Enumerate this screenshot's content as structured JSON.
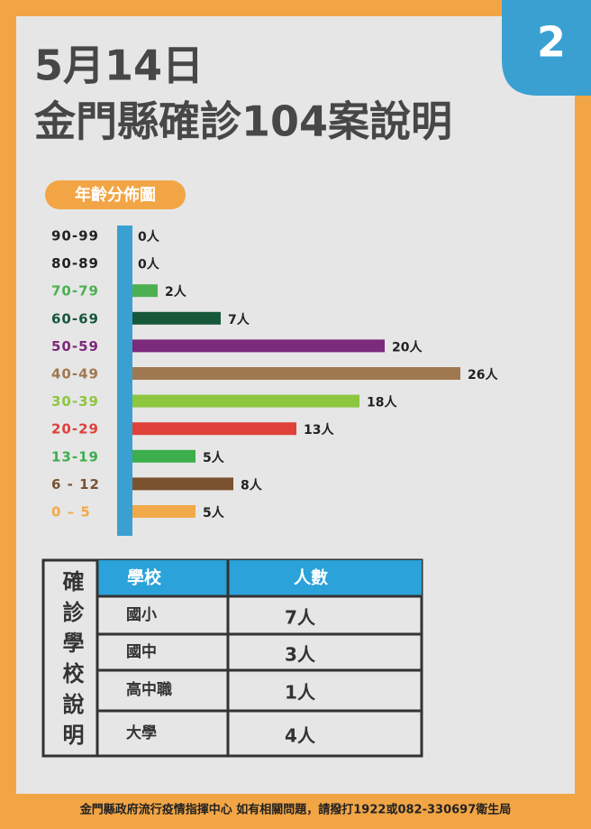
{
  "header": {
    "date": "5月14日",
    "title": "金門縣確診104案說明",
    "page_number": "2"
  },
  "chart_data": {
    "type": "bar",
    "orientation": "horizontal",
    "title": "年齡分佈圖",
    "categories": [
      "90-99",
      "80-89",
      "70-79",
      "60-69",
      "50-59",
      "40-49",
      "30-39",
      "20-29",
      "13-19",
      "6 - 12",
      "0 – 5"
    ],
    "values": [
      0,
      0,
      2,
      7,
      20,
      26,
      18,
      13,
      5,
      8,
      5
    ],
    "value_labels": [
      "0人",
      "0人",
      "2人",
      "7人",
      "20人",
      "26人",
      "18人",
      "13人",
      "5人",
      "8人",
      "5人"
    ],
    "colors": [
      "#222222",
      "#222222",
      "#4cb051",
      "#17573a",
      "#7b2a7c",
      "#a07850",
      "#8dc63f",
      "#e0403a",
      "#3cae4c",
      "#7a5230",
      "#f2a94a"
    ]
  },
  "table": {
    "side_label": "確診學校說明",
    "header": [
      "學校",
      "人數"
    ],
    "rows": [
      [
        "國小",
        "7人"
      ],
      [
        "國中",
        "3人"
      ],
      [
        "高中職",
        "1人"
      ],
      [
        "大學",
        "4人"
      ]
    ]
  },
  "footer": "金門縣政府流行疫情指揮中心 如有相關問題，請撥打1922或082-330697衛生局"
}
